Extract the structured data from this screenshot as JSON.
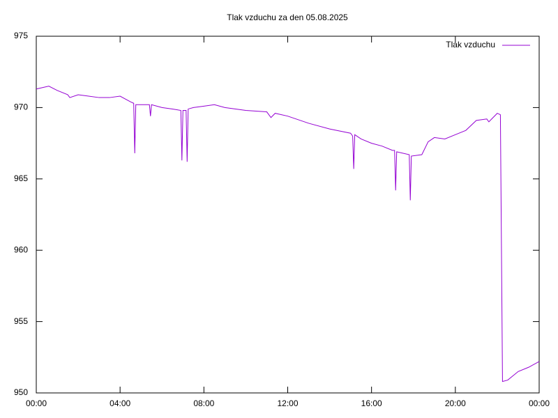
{
  "chart_data": {
    "type": "line",
    "title": "Tlak vzduchu za den 05.08.2025",
    "x": [
      0,
      0.6,
      1.0,
      1.5,
      1.6,
      2.0,
      3.0,
      3.5,
      4.0,
      4.5,
      4.65,
      4.7,
      4.75,
      5.0,
      5.4,
      5.45,
      5.5,
      6.0,
      6.5,
      6.9,
      6.95,
      7.0,
      7.15,
      7.2,
      7.25,
      7.5,
      8.0,
      8.5,
      9.0,
      10.0,
      11.0,
      11.2,
      11.4,
      12.0,
      13.0,
      14.0,
      15.0,
      15.1,
      15.15,
      15.2,
      15.5,
      16.0,
      16.5,
      17.0,
      17.1,
      17.15,
      17.2,
      17.8,
      17.85,
      17.9,
      18.4,
      18.7,
      19.0,
      19.5,
      20.0,
      20.5,
      21.0,
      21.5,
      21.6,
      22.0,
      22.15,
      22.2,
      22.25,
      22.5,
      23.0,
      23.5,
      24.0
    ],
    "series": [
      {
        "name": "Tlak vzduchu",
        "color": "#9400d3",
        "values": [
          971.3,
          971.5,
          971.2,
          970.9,
          970.7,
          970.9,
          970.7,
          970.7,
          970.8,
          970.4,
          970.3,
          966.8,
          970.2,
          970.2,
          970.2,
          969.4,
          970.2,
          970.0,
          969.9,
          969.8,
          966.3,
          969.8,
          969.8,
          966.2,
          969.9,
          970.0,
          970.1,
          970.2,
          970.0,
          969.8,
          969.7,
          969.3,
          969.6,
          969.4,
          968.9,
          968.5,
          968.2,
          968.0,
          965.7,
          968.1,
          967.8,
          967.5,
          967.3,
          967.0,
          967.0,
          964.2,
          966.9,
          966.7,
          963.5,
          966.6,
          966.7,
          967.6,
          967.9,
          967.8,
          968.1,
          968.4,
          969.1,
          969.2,
          969.0,
          969.6,
          969.5,
          960.2,
          950.8,
          950.9,
          951.5,
          951.8,
          952.2
        ]
      }
    ],
    "xlim": [
      0,
      24
    ],
    "xticks": [
      {
        "value": 0,
        "label": "00:00"
      },
      {
        "value": 4,
        "label": "04:00"
      },
      {
        "value": 8,
        "label": "08:00"
      },
      {
        "value": 12,
        "label": "12:00"
      },
      {
        "value": 16,
        "label": "16:00"
      },
      {
        "value": 20,
        "label": "20:00"
      },
      {
        "value": 24,
        "label": "00:00"
      }
    ],
    "ylim": [
      950,
      975
    ],
    "yticks": [
      950,
      955,
      960,
      965,
      970,
      975
    ],
    "legend": "top-right"
  }
}
